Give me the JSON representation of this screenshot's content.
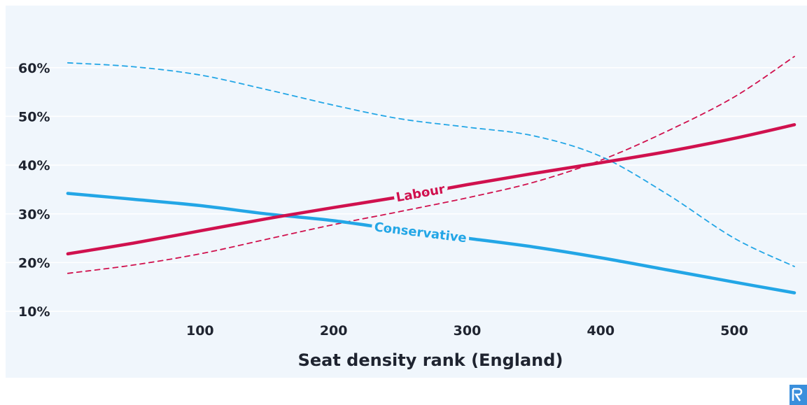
{
  "chart_data": {
    "type": "line",
    "title": "",
    "xlabel": "Seat density rank (England)",
    "ylabel": "",
    "xlim": [
      0,
      545
    ],
    "ylim": [
      7,
      67
    ],
    "x_ticks": [
      100,
      200,
      300,
      400,
      500
    ],
    "y_ticks": [
      10,
      20,
      30,
      40,
      50,
      60
    ],
    "y_tick_labels": [
      "10%",
      "20%",
      "30%",
      "40%",
      "50%",
      "60%"
    ],
    "grid": "horizontal",
    "series": [
      {
        "name": "Labour",
        "color": "#d0114e",
        "style": "solid",
        "x": [
          1,
          50,
          100,
          150,
          200,
          250,
          300,
          350,
          400,
          450,
          500,
          545
        ],
        "values": [
          21.8,
          24.0,
          26.5,
          29.0,
          31.3,
          33.5,
          36.0,
          38.3,
          40.5,
          42.8,
          45.5,
          48.3
        ]
      },
      {
        "name": "Conservative",
        "color": "#23a6e6",
        "style": "solid",
        "x": [
          1,
          50,
          100,
          150,
          200,
          250,
          300,
          350,
          400,
          450,
          500,
          545
        ],
        "values": [
          34.2,
          33.0,
          31.7,
          30.0,
          28.6,
          26.7,
          25.0,
          23.2,
          21.0,
          18.5,
          16.0,
          13.8
        ]
      },
      {
        "name": "",
        "color": "#d0114e",
        "style": "dashed",
        "x": [
          1,
          50,
          100,
          150,
          200,
          250,
          300,
          350,
          400,
          450,
          500,
          545
        ],
        "values": [
          17.8,
          19.5,
          21.8,
          24.8,
          27.8,
          30.5,
          33.3,
          36.5,
          41.0,
          47.0,
          54.0,
          62.3
        ]
      },
      {
        "name": "",
        "color": "#23a6e6",
        "style": "dashed",
        "x": [
          1,
          50,
          100,
          150,
          200,
          250,
          300,
          350,
          400,
          450,
          500,
          545
        ],
        "values": [
          61.0,
          60.2,
          58.5,
          55.5,
          52.3,
          49.5,
          47.8,
          46.0,
          41.8,
          34.0,
          25.0,
          19.2
        ]
      }
    ],
    "annotations": [
      {
        "text": "Labour",
        "series": 0,
        "x": 265
      },
      {
        "text": "Conservative",
        "series": 1,
        "x": 265
      }
    ]
  }
}
